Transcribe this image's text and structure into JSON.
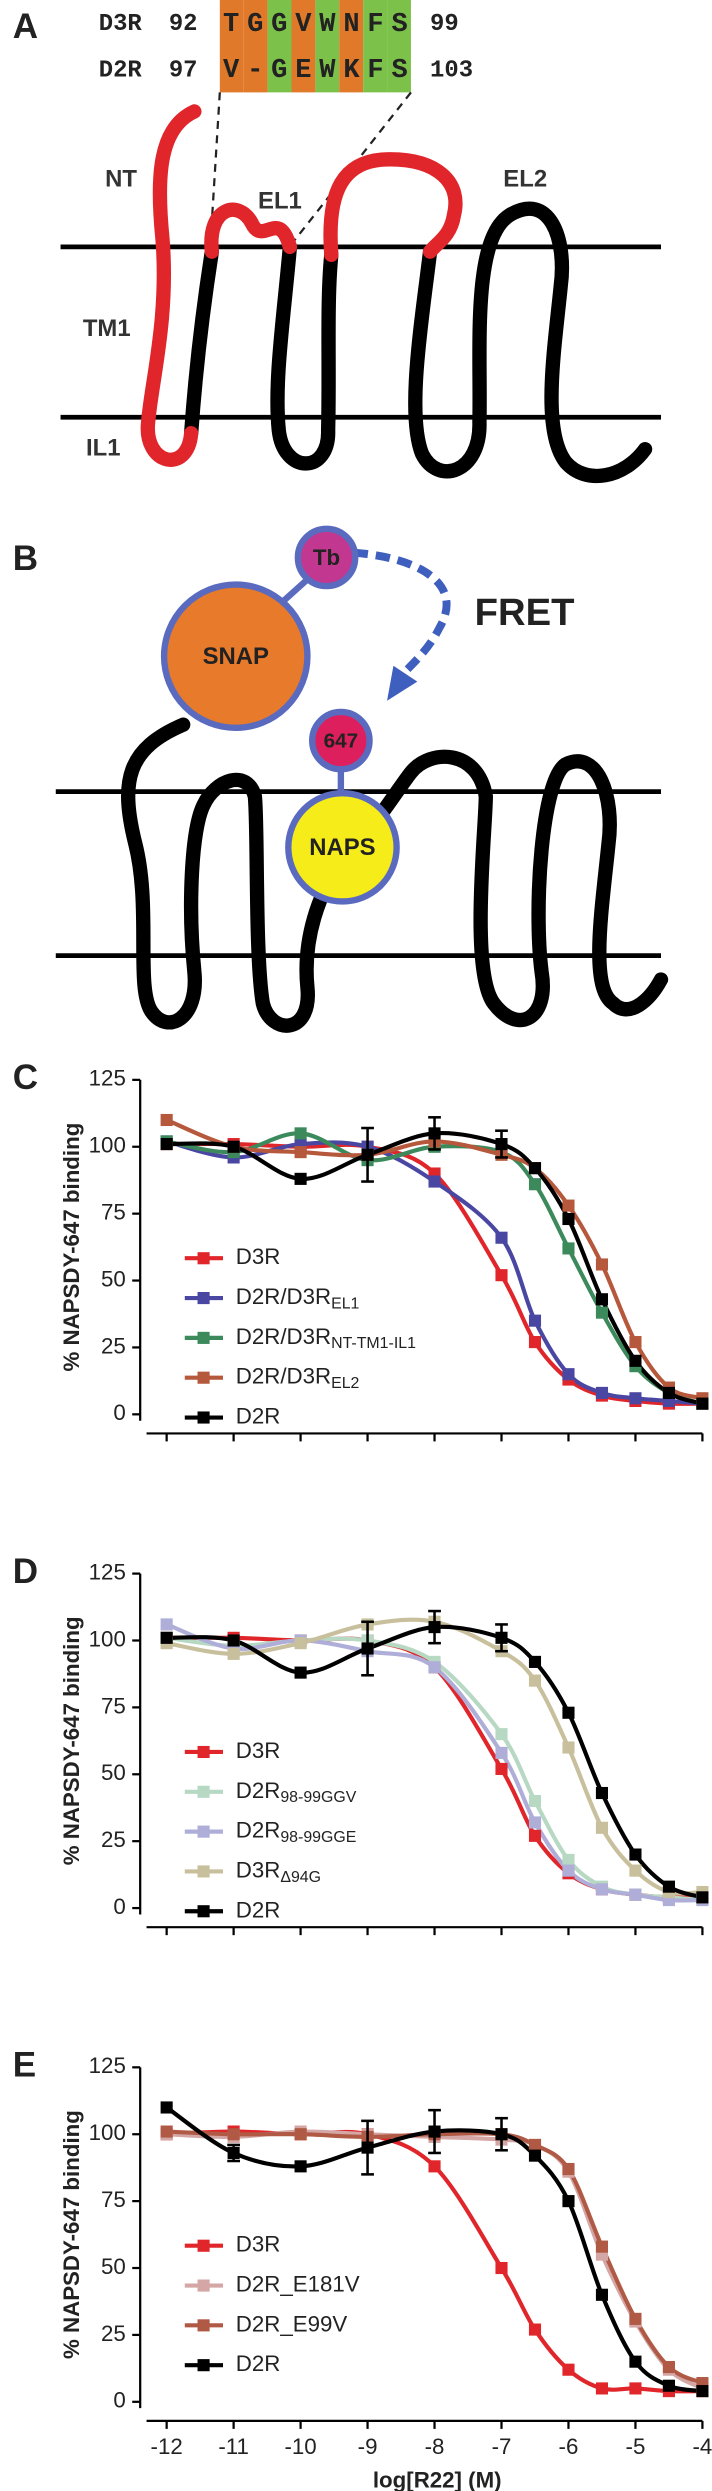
{
  "panel_labels": [
    "A",
    "B",
    "C",
    "D",
    "E"
  ],
  "diagram_a": {
    "alignment": [
      {
        "name": "D3R",
        "start": "92",
        "sequence": "TGGVWNFS",
        "end": "99"
      },
      {
        "name": "D2R",
        "start": "97",
        "sequence": "V-GEWKFS",
        "end": "103"
      }
    ],
    "labels": {
      "nt": "NT",
      "el1": "EL1",
      "el2": "EL2",
      "tm1": "TM1",
      "il1": "IL1"
    }
  },
  "diagram_b": {
    "labels": {
      "snap": "SNAP",
      "tb": "Tb",
      "dye": "647",
      "naps": "NAPS",
      "fret": "FRET"
    }
  },
  "chart_data": [
    {
      "type": "line",
      "ylabel": "% NAPSDY-647 binding",
      "x": [
        -12,
        -11,
        -10,
        -9,
        -8,
        -7,
        -6.5,
        -6,
        -5.5,
        -5,
        -4.5,
        -4
      ],
      "xlim": [
        -12.3,
        -4
      ],
      "xticks": [
        -12,
        -11,
        -10,
        -9,
        -8,
        -7,
        -6,
        -5,
        -4
      ],
      "xtick_labels": false,
      "ylim": [
        0,
        125
      ],
      "yticks": [
        0,
        25,
        50,
        75,
        100,
        125
      ],
      "series": [
        {
          "name": "D3R",
          "color": "#e0262b",
          "values": [
            101,
            101,
            100,
            100,
            90,
            52,
            27,
            13,
            7,
            5,
            4,
            4
          ]
        },
        {
          "name": "D2R/D3R",
          "name_sub": "EL1",
          "color": "#4a47a3",
          "values": [
            102,
            96,
            101,
            100,
            87,
            66,
            35,
            15,
            8,
            6,
            5,
            4
          ]
        },
        {
          "name": "D2R/D3R",
          "name_sub": "NT-TM1-IL1",
          "color": "#3c8a5c",
          "values": [
            102,
            98,
            105,
            95,
            100,
            98,
            86,
            62,
            38,
            18,
            8,
            4
          ]
        },
        {
          "name": "D2R/D3R",
          "name_sub": "EL2",
          "color": "#b5583b",
          "values": [
            110,
            100,
            98,
            97,
            102,
            97,
            92,
            78,
            56,
            27,
            10,
            6
          ]
        },
        {
          "name": "D2R",
          "color": "#000000",
          "values": [
            101,
            100,
            88,
            97,
            105,
            101,
            92,
            73,
            43,
            20,
            8,
            4
          ],
          "errors": [
            null,
            null,
            null,
            10,
            6,
            5,
            null,
            null,
            null,
            null,
            null,
            null
          ]
        }
      ]
    },
    {
      "type": "line",
      "ylabel": "% NAPSDY-647 binding",
      "x": [
        -12,
        -11,
        -10,
        -9,
        -8,
        -7,
        -6.5,
        -6,
        -5.5,
        -5,
        -4.5,
        -4
      ],
      "xlim": [
        -12.3,
        -4
      ],
      "xticks": [
        -12,
        -11,
        -10,
        -9,
        -8,
        -7,
        -6,
        -5,
        -4
      ],
      "xtick_labels": false,
      "ylim": [
        0,
        125
      ],
      "yticks": [
        0,
        25,
        50,
        75,
        100,
        125
      ],
      "series": [
        {
          "name": "D3R",
          "color": "#e0262b",
          "values": [
            101,
            101,
            100,
            100,
            90,
            52,
            27,
            13,
            7,
            5,
            4,
            4
          ]
        },
        {
          "name": "D2R",
          "name_sub": "98-99GGV",
          "color": "#b7d8c3",
          "values": [
            101,
            98,
            100,
            100,
            92,
            65,
            40,
            18,
            8,
            5,
            4,
            3
          ]
        },
        {
          "name": "D2R",
          "name_sub": "98-99GGE",
          "color": "#aeaed8",
          "values": [
            106,
            97,
            100,
            96,
            90,
            58,
            32,
            14,
            7,
            5,
            3,
            3
          ]
        },
        {
          "name": "D3R",
          "name_sub": "Δ94G",
          "color": "#c8bf9c",
          "values": [
            99,
            95,
            99,
            106,
            107,
            96,
            85,
            60,
            30,
            14,
            6,
            6
          ]
        },
        {
          "name": "D2R",
          "color": "#000000",
          "values": [
            101,
            100,
            88,
            97,
            105,
            101,
            92,
            73,
            43,
            20,
            8,
            4
          ],
          "errors": [
            null,
            null,
            null,
            10,
            6,
            5,
            null,
            null,
            null,
            null,
            null,
            null
          ]
        }
      ]
    },
    {
      "type": "line",
      "ylabel": "% NAPSDY-647 binding",
      "xlabel": "log[R22] (M)",
      "x": [
        -12,
        -11,
        -10,
        -9,
        -8,
        -7,
        -6.5,
        -6,
        -5.5,
        -5,
        -4.5,
        -4
      ],
      "xlim": [
        -12.3,
        -4
      ],
      "xticks": [
        -12,
        -11,
        -10,
        -9,
        -8,
        -7,
        -6,
        -5,
        -4
      ],
      "xtick_labels": true,
      "ylim": [
        0,
        125
      ],
      "yticks": [
        0,
        25,
        50,
        75,
        100,
        125
      ],
      "series": [
        {
          "name": "D3R",
          "color": "#e0262b",
          "values": [
            100,
            101,
            100,
            100,
            88,
            50,
            27,
            12,
            5,
            5,
            4,
            4
          ]
        },
        {
          "name": "D2R_E181V",
          "color": "#d4a6a6",
          "values": [
            100,
            99,
            101,
            100,
            99,
            98,
            96,
            86,
            55,
            30,
            12,
            5
          ]
        },
        {
          "name": "D2R_E99V",
          "color": "#b05a45",
          "values": [
            101,
            100,
            100,
            99,
            100,
            100,
            96,
            87,
            58,
            31,
            13,
            7
          ]
        },
        {
          "name": "D2R",
          "color": "#000000",
          "values": [
            110,
            93,
            88,
            95,
            101,
            100,
            92,
            75,
            40,
            15,
            6,
            4
          ],
          "errors": [
            null,
            3,
            null,
            10,
            8,
            6,
            null,
            null,
            null,
            null,
            null,
            null
          ]
        }
      ]
    }
  ]
}
